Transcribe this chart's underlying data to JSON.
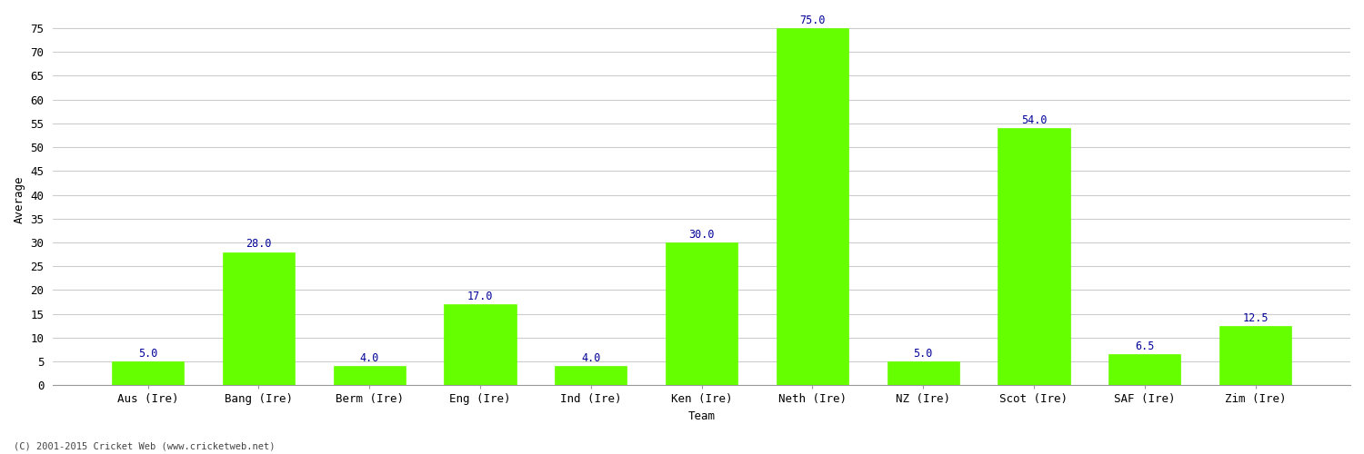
{
  "title": "",
  "categories": [
    "Aus (Ire)",
    "Bang (Ire)",
    "Berm (Ire)",
    "Eng (Ire)",
    "Ind (Ire)",
    "Ken (Ire)",
    "Neth (Ire)",
    "NZ (Ire)",
    "Scot (Ire)",
    "SAF (Ire)",
    "Zim (Ire)"
  ],
  "values": [
    5.0,
    28.0,
    4.0,
    17.0,
    4.0,
    30.0,
    75.0,
    5.0,
    54.0,
    6.5,
    12.5
  ],
  "bar_color": "#66ff00",
  "bar_edge_color": "#66ff00",
  "label_color": "#000099",
  "xlabel": "Team",
  "ylabel": "Average",
  "ylim": [
    0,
    78
  ],
  "yticks": [
    0,
    5,
    10,
    15,
    20,
    25,
    30,
    35,
    40,
    45,
    50,
    55,
    60,
    65,
    70,
    75
  ],
  "background_color": "#ffffff",
  "grid_color": "#cccccc",
  "footer": "(C) 2001-2015 Cricket Web (www.cricketweb.net)",
  "label_fontsize": 8.5,
  "axis_fontsize": 9,
  "ylabel_fontsize": 9,
  "xlabel_fontsize": 9
}
